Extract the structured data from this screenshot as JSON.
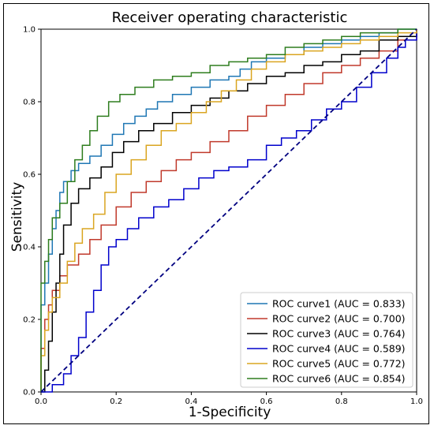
{
  "chart_data": {
    "type": "line",
    "title": "Receiver operating characteristic",
    "xlabel": "1-Specificity",
    "ylabel": "Sensitivity",
    "xlim": [
      0.0,
      1.0
    ],
    "ylim": [
      0.0,
      1.0
    ],
    "xticks": [
      "0.0",
      "0.2",
      "0.4",
      "0.6",
      "0.8",
      "1.0"
    ],
    "yticks": [
      "0.0",
      "0.2",
      "0.4",
      "0.6",
      "0.8",
      "1.0"
    ],
    "legend_position": "bottom-right",
    "grid": false,
    "series": [
      {
        "name": "ROC curve1 (AUC = 0.833)",
        "color": "#1f77b4",
        "points": [
          [
            0,
            0
          ],
          [
            0,
            0.24
          ],
          [
            0.01,
            0.3
          ],
          [
            0.02,
            0.38
          ],
          [
            0.03,
            0.45
          ],
          [
            0.04,
            0.5
          ],
          [
            0.05,
            0.55
          ],
          [
            0.06,
            0.58
          ],
          [
            0.08,
            0.61
          ],
          [
            0.1,
            0.63
          ],
          [
            0.13,
            0.65
          ],
          [
            0.16,
            0.68
          ],
          [
            0.19,
            0.71
          ],
          [
            0.22,
            0.74
          ],
          [
            0.25,
            0.76
          ],
          [
            0.28,
            0.78
          ],
          [
            0.31,
            0.8
          ],
          [
            0.35,
            0.82
          ],
          [
            0.4,
            0.84
          ],
          [
            0.45,
            0.86
          ],
          [
            0.5,
            0.87
          ],
          [
            0.53,
            0.89
          ],
          [
            0.56,
            0.91
          ],
          [
            0.6,
            0.92
          ],
          [
            0.65,
            0.93
          ],
          [
            0.7,
            0.95
          ],
          [
            0.75,
            0.96
          ],
          [
            0.8,
            0.97
          ],
          [
            0.85,
            0.98
          ],
          [
            0.9,
            0.99
          ],
          [
            0.95,
            1.0
          ],
          [
            1.0,
            1.0
          ]
        ]
      },
      {
        "name": "ROC curve2 (AUC = 0.700)",
        "color": "#c0392b",
        "points": [
          [
            0,
            0
          ],
          [
            0,
            0.12
          ],
          [
            0.01,
            0.2
          ],
          [
            0.02,
            0.24
          ],
          [
            0.03,
            0.28
          ],
          [
            0.05,
            0.32
          ],
          [
            0.07,
            0.35
          ],
          [
            0.1,
            0.38
          ],
          [
            0.13,
            0.42
          ],
          [
            0.16,
            0.46
          ],
          [
            0.2,
            0.51
          ],
          [
            0.24,
            0.55
          ],
          [
            0.28,
            0.58
          ],
          [
            0.32,
            0.61
          ],
          [
            0.36,
            0.64
          ],
          [
            0.4,
            0.66
          ],
          [
            0.45,
            0.69
          ],
          [
            0.5,
            0.72
          ],
          [
            0.55,
            0.76
          ],
          [
            0.6,
            0.79
          ],
          [
            0.65,
            0.82
          ],
          [
            0.7,
            0.85
          ],
          [
            0.75,
            0.88
          ],
          [
            0.8,
            0.9
          ],
          [
            0.85,
            0.92
          ],
          [
            0.9,
            0.94
          ],
          [
            0.95,
            0.97
          ],
          [
            1.0,
            1.0
          ]
        ]
      },
      {
        "name": "ROC curve3 (AUC = 0.764)",
        "color": "#000000",
        "points": [
          [
            0,
            0
          ],
          [
            0.01,
            0.06
          ],
          [
            0.02,
            0.14
          ],
          [
            0.03,
            0.22
          ],
          [
            0.04,
            0.3
          ],
          [
            0.05,
            0.38
          ],
          [
            0.06,
            0.46
          ],
          [
            0.08,
            0.52
          ],
          [
            0.1,
            0.56
          ],
          [
            0.13,
            0.59
          ],
          [
            0.16,
            0.62
          ],
          [
            0.19,
            0.66
          ],
          [
            0.22,
            0.69
          ],
          [
            0.26,
            0.72
          ],
          [
            0.3,
            0.74
          ],
          [
            0.35,
            0.77
          ],
          [
            0.4,
            0.79
          ],
          [
            0.45,
            0.81
          ],
          [
            0.5,
            0.83
          ],
          [
            0.55,
            0.85
          ],
          [
            0.6,
            0.87
          ],
          [
            0.65,
            0.88
          ],
          [
            0.7,
            0.9
          ],
          [
            0.75,
            0.91
          ],
          [
            0.8,
            0.93
          ],
          [
            0.85,
            0.94
          ],
          [
            0.9,
            0.97
          ],
          [
            0.95,
            0.98
          ],
          [
            1.0,
            1.0
          ]
        ]
      },
      {
        "name": "ROC curve4 (AUC = 0.589)",
        "color": "#0000cc",
        "points": [
          [
            0,
            0
          ],
          [
            0.03,
            0.02
          ],
          [
            0.06,
            0.05
          ],
          [
            0.08,
            0.1
          ],
          [
            0.1,
            0.15
          ],
          [
            0.12,
            0.22
          ],
          [
            0.14,
            0.28
          ],
          [
            0.16,
            0.35
          ],
          [
            0.18,
            0.4
          ],
          [
            0.2,
            0.42
          ],
          [
            0.23,
            0.45
          ],
          [
            0.26,
            0.48
          ],
          [
            0.3,
            0.51
          ],
          [
            0.34,
            0.53
          ],
          [
            0.38,
            0.56
          ],
          [
            0.42,
            0.59
          ],
          [
            0.46,
            0.61
          ],
          [
            0.5,
            0.62
          ],
          [
            0.55,
            0.64
          ],
          [
            0.6,
            0.68
          ],
          [
            0.64,
            0.7
          ],
          [
            0.68,
            0.72
          ],
          [
            0.72,
            0.75
          ],
          [
            0.76,
            0.78
          ],
          [
            0.8,
            0.8
          ],
          [
            0.84,
            0.84
          ],
          [
            0.88,
            0.88
          ],
          [
            0.92,
            0.92
          ],
          [
            0.95,
            0.95
          ],
          [
            0.97,
            0.97
          ],
          [
            1.0,
            1.0
          ]
        ]
      },
      {
        "name": "ROC curve5 (AUC = 0.772)",
        "color": "#daa520",
        "points": [
          [
            0,
            0
          ],
          [
            0,
            0.1
          ],
          [
            0.01,
            0.17
          ],
          [
            0.02,
            0.22
          ],
          [
            0.03,
            0.26
          ],
          [
            0.05,
            0.3
          ],
          [
            0.07,
            0.36
          ],
          [
            0.09,
            0.41
          ],
          [
            0.11,
            0.45
          ],
          [
            0.14,
            0.49
          ],
          [
            0.17,
            0.55
          ],
          [
            0.2,
            0.6
          ],
          [
            0.24,
            0.64
          ],
          [
            0.28,
            0.68
          ],
          [
            0.32,
            0.72
          ],
          [
            0.36,
            0.74
          ],
          [
            0.4,
            0.77
          ],
          [
            0.44,
            0.8
          ],
          [
            0.48,
            0.83
          ],
          [
            0.52,
            0.86
          ],
          [
            0.56,
            0.89
          ],
          [
            0.6,
            0.91
          ],
          [
            0.65,
            0.93
          ],
          [
            0.7,
            0.94
          ],
          [
            0.75,
            0.95
          ],
          [
            0.8,
            0.96
          ],
          [
            0.85,
            0.97
          ],
          [
            0.9,
            0.98
          ],
          [
            0.95,
            0.99
          ],
          [
            1.0,
            1.0
          ]
        ]
      },
      {
        "name": "ROC curve6 (AUC = 0.854)",
        "color": "#2e7d1e",
        "points": [
          [
            0,
            0
          ],
          [
            0,
            0.3
          ],
          [
            0.01,
            0.36
          ],
          [
            0.02,
            0.42
          ],
          [
            0.03,
            0.48
          ],
          [
            0.05,
            0.52
          ],
          [
            0.07,
            0.58
          ],
          [
            0.09,
            0.64
          ],
          [
            0.11,
            0.68
          ],
          [
            0.13,
            0.72
          ],
          [
            0.15,
            0.76
          ],
          [
            0.18,
            0.8
          ],
          [
            0.21,
            0.82
          ],
          [
            0.25,
            0.84
          ],
          [
            0.3,
            0.86
          ],
          [
            0.35,
            0.87
          ],
          [
            0.4,
            0.88
          ],
          [
            0.45,
            0.9
          ],
          [
            0.5,
            0.91
          ],
          [
            0.55,
            0.92
          ],
          [
            0.6,
            0.93
          ],
          [
            0.65,
            0.95
          ],
          [
            0.7,
            0.96
          ],
          [
            0.75,
            0.97
          ],
          [
            0.8,
            0.98
          ],
          [
            0.85,
            0.99
          ],
          [
            0.9,
            0.99
          ],
          [
            0.95,
            1.0
          ],
          [
            1.0,
            1.0
          ]
        ]
      }
    ],
    "reference_line": {
      "points": [
        [
          0,
          0
        ],
        [
          1,
          1
        ]
      ],
      "color": "#000080",
      "style": "dashed"
    }
  }
}
